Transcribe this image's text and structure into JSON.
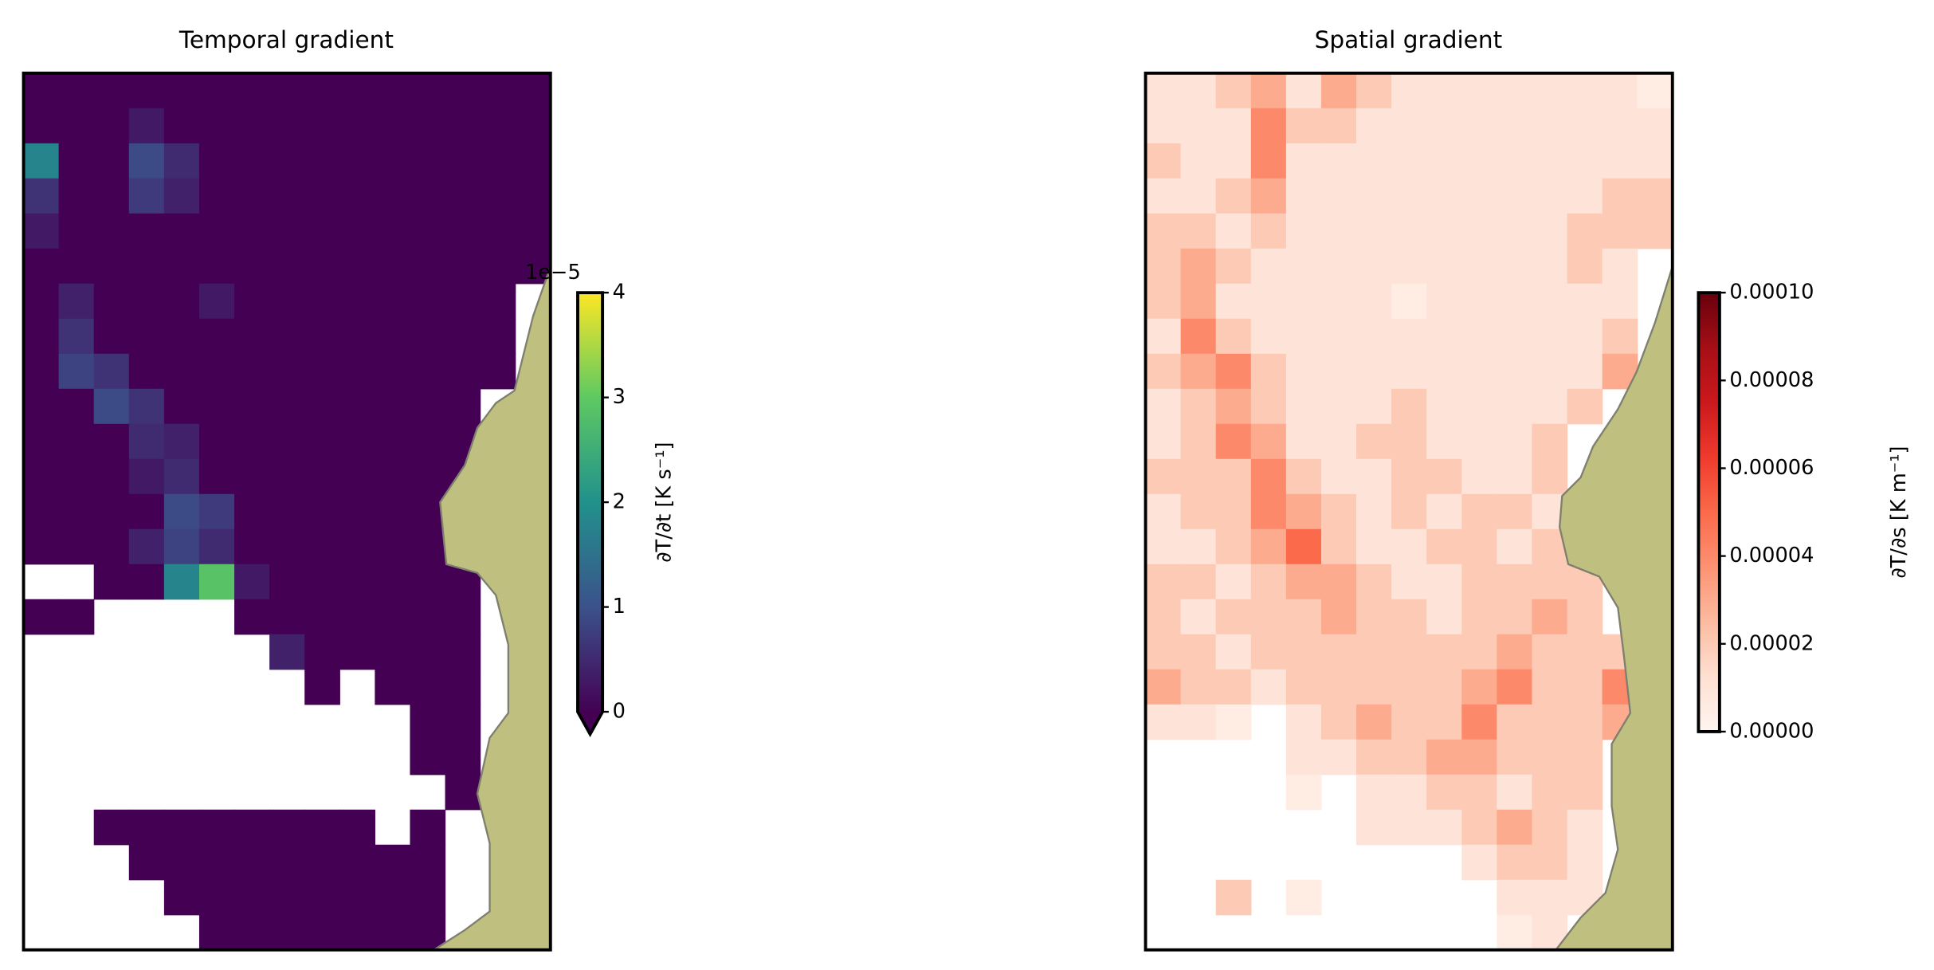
{
  "chart_data": [
    {
      "type": "heatmap",
      "title": "Temporal gradient",
      "colorbar_label": "∂T/∂t [K s⁻¹]",
      "colorbar_offset": "1e−5",
      "colormap": "viridis",
      "extend": "min",
      "clim": [
        0,
        4
      ],
      "cticks": [
        0,
        1,
        2,
        3,
        4
      ],
      "rows": [
        [
          0,
          0,
          0,
          0,
          0,
          0,
          0,
          0,
          0,
          0,
          0,
          0,
          0,
          0,
          0
        ],
        [
          0,
          0,
          0,
          0.3,
          0,
          0,
          0,
          0,
          0,
          0,
          0,
          0,
          0,
          0,
          0
        ],
        [
          1.8,
          0,
          0,
          0.9,
          0.5,
          0,
          0,
          0,
          0,
          0,
          0,
          0,
          0,
          0,
          0
        ],
        [
          0.6,
          0,
          0,
          0.7,
          0.4,
          0,
          0,
          0,
          0,
          0,
          0,
          0,
          0,
          0,
          0
        ],
        [
          0.3,
          0,
          0,
          0,
          0,
          0,
          0,
          0,
          0,
          0,
          0,
          0,
          0,
          0,
          0
        ],
        [
          0,
          0,
          0,
          0,
          0,
          0,
          0,
          0,
          0,
          0,
          0,
          0,
          0,
          0,
          0
        ],
        [
          0,
          0.4,
          0,
          0,
          0,
          0.3,
          0,
          0,
          0,
          0,
          0,
          0,
          0,
          0,
          null
        ],
        [
          0,
          0.6,
          0,
          0,
          0,
          0,
          0,
          0,
          0,
          0,
          0,
          0,
          0,
          0,
          null
        ],
        [
          0,
          0.8,
          0.6,
          0,
          0,
          0,
          0,
          0,
          0,
          0,
          0,
          0,
          0,
          0,
          null
        ],
        [
          0,
          0,
          0.9,
          0.6,
          0,
          0,
          0,
          0,
          0,
          0,
          0,
          0,
          0,
          null,
          null
        ],
        [
          0,
          0,
          0,
          0.5,
          0.4,
          0,
          0,
          0,
          0,
          0,
          0,
          0,
          0,
          null,
          null
        ],
        [
          0,
          0,
          0,
          0.3,
          0.5,
          0,
          0,
          0,
          0,
          0,
          0,
          0,
          0,
          null,
          null
        ],
        [
          0,
          0,
          0,
          0,
          0.9,
          0.7,
          0,
          0,
          0,
          0,
          0,
          0,
          0,
          null,
          null
        ],
        [
          0,
          0,
          0,
          0.4,
          0.8,
          0.5,
          0,
          0,
          0,
          0,
          0,
          0,
          0,
          null,
          null
        ],
        [
          null,
          null,
          0,
          0,
          1.8,
          2.9,
          0.3,
          0,
          0,
          0,
          0,
          0,
          0,
          null,
          null
        ],
        [
          0,
          0,
          null,
          null,
          null,
          null,
          0,
          0,
          0,
          0,
          0,
          0,
          0,
          null,
          null
        ],
        [
          null,
          null,
          null,
          null,
          null,
          null,
          null,
          0.4,
          0,
          0,
          0,
          0,
          0,
          null,
          null
        ],
        [
          null,
          null,
          null,
          null,
          null,
          null,
          null,
          null,
          0,
          null,
          0,
          0,
          0,
          null,
          null
        ],
        [
          null,
          null,
          null,
          null,
          null,
          null,
          null,
          null,
          null,
          null,
          null,
          0,
          0,
          null,
          null
        ],
        [
          null,
          null,
          null,
          null,
          null,
          null,
          null,
          null,
          null,
          null,
          null,
          0,
          0,
          null,
          null
        ],
        [
          null,
          null,
          null,
          null,
          null,
          null,
          null,
          null,
          null,
          null,
          null,
          null,
          0,
          null,
          null
        ],
        [
          null,
          null,
          0,
          0,
          0,
          0,
          0,
          0,
          0,
          0,
          null,
          0,
          null,
          null,
          null
        ],
        [
          null,
          null,
          null,
          0,
          0,
          0,
          0,
          0,
          0,
          0,
          0,
          0,
          null,
          null,
          null
        ],
        [
          null,
          null,
          null,
          null,
          0,
          0,
          0,
          0,
          0,
          0,
          0,
          0,
          null,
          null,
          null
        ],
        [
          null,
          null,
          null,
          null,
          null,
          0,
          0,
          0,
          0,
          0,
          0,
          0,
          null,
          null,
          null
        ]
      ]
    },
    {
      "type": "heatmap",
      "title": "Spatial gradient",
      "colorbar_label": "∂T/∂s [K m⁻¹]",
      "colormap": "reds",
      "clim": [
        0,
        0.0001
      ],
      "cticks": [
        {
          "value": 0,
          "label": "0.00000"
        },
        {
          "value": 2e-05,
          "label": "0.00002"
        },
        {
          "value": 4e-05,
          "label": "0.00004"
        },
        {
          "value": 6e-05,
          "label": "0.00006"
        },
        {
          "value": 8e-05,
          "label": "0.00008"
        },
        {
          "value": 0.0001,
          "label": "0.00010"
        }
      ],
      "rows": [
        [
          1e-05,
          1e-05,
          2e-05,
          3e-05,
          1e-05,
          3e-05,
          2e-05,
          1e-05,
          1e-05,
          1e-05,
          1e-05,
          1e-05,
          1e-05,
          1e-05,
          5e-06
        ],
        [
          1e-05,
          1e-05,
          1e-05,
          4e-05,
          2e-05,
          2e-05,
          1e-05,
          1e-05,
          1e-05,
          1e-05,
          1e-05,
          1e-05,
          1e-05,
          1e-05,
          1e-05
        ],
        [
          2e-05,
          1e-05,
          1e-05,
          4e-05,
          1e-05,
          1e-05,
          1e-05,
          1e-05,
          1e-05,
          1e-05,
          1e-05,
          1e-05,
          1e-05,
          1e-05,
          1e-05
        ],
        [
          1e-05,
          1e-05,
          2e-05,
          3e-05,
          1e-05,
          1e-05,
          1e-05,
          1e-05,
          1e-05,
          1e-05,
          1e-05,
          1e-05,
          1e-05,
          2e-05,
          2e-05
        ],
        [
          2e-05,
          2e-05,
          1e-05,
          2e-05,
          1e-05,
          1e-05,
          1e-05,
          1e-05,
          1e-05,
          1e-05,
          1e-05,
          1e-05,
          2e-05,
          2e-05,
          2e-05
        ],
        [
          2e-05,
          3e-05,
          2e-05,
          1e-05,
          1e-05,
          1e-05,
          1e-05,
          1e-05,
          1e-05,
          1e-05,
          1e-05,
          1e-05,
          2e-05,
          1e-05,
          null
        ],
        [
          2e-05,
          3e-05,
          1e-05,
          1e-05,
          1e-05,
          1e-05,
          1e-05,
          5e-06,
          1e-05,
          1e-05,
          1e-05,
          1e-05,
          1e-05,
          1e-05,
          null
        ],
        [
          1e-05,
          4e-05,
          2e-05,
          1e-05,
          1e-05,
          1e-05,
          1e-05,
          1e-05,
          1e-05,
          1e-05,
          1e-05,
          1e-05,
          1e-05,
          2e-05,
          null
        ],
        [
          2e-05,
          3e-05,
          4e-05,
          2e-05,
          1e-05,
          1e-05,
          1e-05,
          1e-05,
          1e-05,
          1e-05,
          1e-05,
          1e-05,
          1e-05,
          3e-05,
          null
        ],
        [
          1e-05,
          2e-05,
          3e-05,
          2e-05,
          1e-05,
          1e-05,
          1e-05,
          2e-05,
          1e-05,
          1e-05,
          1e-05,
          1e-05,
          2e-05,
          null,
          null
        ],
        [
          1e-05,
          2e-05,
          4e-05,
          3e-05,
          1e-05,
          1e-05,
          2e-05,
          2e-05,
          1e-05,
          1e-05,
          1e-05,
          2e-05,
          null,
          null,
          null
        ],
        [
          2e-05,
          2e-05,
          2e-05,
          4e-05,
          2e-05,
          1e-05,
          1e-05,
          2e-05,
          2e-05,
          1e-05,
          1e-05,
          2e-05,
          null,
          null,
          null
        ],
        [
          1e-05,
          2e-05,
          2e-05,
          4e-05,
          3e-05,
          2e-05,
          1e-05,
          2e-05,
          1e-05,
          2e-05,
          2e-05,
          1e-05,
          3e-05,
          null,
          null
        ],
        [
          1e-05,
          1e-05,
          2e-05,
          3e-05,
          5e-05,
          2e-05,
          1e-05,
          1e-05,
          2e-05,
          2e-05,
          1e-05,
          2e-05,
          null,
          null,
          null
        ],
        [
          2e-05,
          2e-05,
          1e-05,
          2e-05,
          3e-05,
          3e-05,
          2e-05,
          1e-05,
          1e-05,
          2e-05,
          2e-05,
          2e-05,
          2e-05,
          null,
          null
        ],
        [
          2e-05,
          1e-05,
          2e-05,
          2e-05,
          2e-05,
          3e-05,
          2e-05,
          2e-05,
          1e-05,
          2e-05,
          2e-05,
          3e-05,
          2e-05,
          null,
          null
        ],
        [
          2e-05,
          2e-05,
          1e-05,
          2e-05,
          2e-05,
          2e-05,
          2e-05,
          2e-05,
          2e-05,
          2e-05,
          3e-05,
          2e-05,
          2e-05,
          2e-05,
          null
        ],
        [
          3e-05,
          2e-05,
          2e-05,
          1e-05,
          2e-05,
          2e-05,
          2e-05,
          2e-05,
          2e-05,
          3e-05,
          4e-05,
          2e-05,
          2e-05,
          4e-05,
          null
        ],
        [
          1e-05,
          1e-05,
          5e-06,
          null,
          1e-05,
          2e-05,
          3e-05,
          2e-05,
          2e-05,
          4e-05,
          2e-05,
          2e-05,
          2e-05,
          3e-05,
          null
        ],
        [
          null,
          null,
          null,
          null,
          1e-05,
          1e-05,
          2e-05,
          2e-05,
          3e-05,
          3e-05,
          2e-05,
          2e-05,
          2e-05,
          null,
          null
        ],
        [
          null,
          null,
          null,
          null,
          5e-06,
          null,
          1e-05,
          1e-05,
          2e-05,
          2e-05,
          1e-05,
          2e-05,
          2e-05,
          null,
          null
        ],
        [
          null,
          null,
          null,
          null,
          null,
          null,
          1e-05,
          1e-05,
          1e-05,
          2e-05,
          3e-05,
          2e-05,
          1e-05,
          null,
          null
        ],
        [
          null,
          null,
          null,
          null,
          null,
          null,
          null,
          null,
          null,
          1e-05,
          2e-05,
          2e-05,
          1e-05,
          null,
          null
        ],
        [
          null,
          null,
          2e-05,
          null,
          5e-06,
          null,
          null,
          null,
          null,
          null,
          1e-05,
          1e-05,
          1e-05,
          null,
          null
        ],
        [
          null,
          null,
          null,
          null,
          null,
          null,
          null,
          null,
          null,
          null,
          5e-06,
          1e-05,
          null,
          null,
          null
        ]
      ]
    }
  ]
}
